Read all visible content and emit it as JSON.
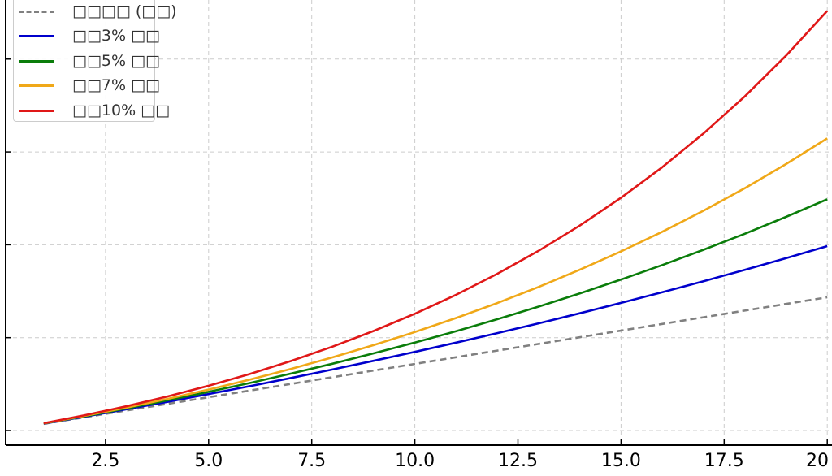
{
  "chart_data": {
    "type": "line",
    "title": "",
    "xlabel": "",
    "ylabel": "",
    "xlim": [
      0,
      20.1
    ],
    "ylim": [
      -3.2,
      64.3
    ],
    "xticks": [
      2.5,
      5.0,
      7.5,
      10.0,
      12.5,
      15.0,
      17.5,
      20.0
    ],
    "xtick_labels": [
      "2.5",
      "5.0",
      "7.5",
      "10.0",
      "12.5",
      "15.0",
      "17.5",
      "20"
    ],
    "ytick_step": 13.94,
    "grid": true,
    "legend_position": "top-left",
    "x": [
      1,
      2,
      3,
      4,
      5,
      6,
      7,
      8,
      9,
      10,
      11,
      12,
      13,
      14,
      15,
      16,
      17,
      18,
      19,
      20
    ],
    "series": [
      {
        "name": "□□□□ (□□)",
        "color": "#808080",
        "dashed": true,
        "values": [
          1,
          2,
          3,
          4,
          5,
          6,
          7,
          8,
          9,
          10,
          11,
          12,
          13,
          14,
          15,
          16,
          17,
          18,
          19,
          20
        ]
      },
      {
        "name": "□□3% □□",
        "color": "#0000cc",
        "dashed": false,
        "values": [
          1.03,
          2.09,
          3.18,
          4.31,
          5.47,
          6.66,
          7.89,
          9.16,
          10.46,
          11.81,
          13.19,
          14.62,
          16.09,
          17.6,
          19.16,
          20.76,
          22.41,
          24.12,
          25.87,
          27.68
        ]
      },
      {
        "name": "□□5% □□",
        "color": "#0a7d0a",
        "dashed": false,
        "values": [
          1.05,
          2.15,
          3.31,
          4.53,
          5.8,
          7.14,
          8.55,
          10.03,
          11.58,
          13.21,
          14.92,
          16.71,
          18.6,
          20.58,
          22.66,
          24.84,
          27.13,
          29.54,
          32.07,
          34.72
        ]
      },
      {
        "name": "□□7% □□",
        "color": "#f0a818",
        "dashed": false,
        "values": [
          1.07,
          2.21,
          3.44,
          4.75,
          6.15,
          7.65,
          9.26,
          10.98,
          12.82,
          14.78,
          16.89,
          19.14,
          21.55,
          24.13,
          26.89,
          29.84,
          33.0,
          36.38,
          40.0,
          43.87
        ]
      },
      {
        "name": "□□10% □□",
        "color": "#e01818",
        "dashed": false,
        "values": [
          1.1,
          2.31,
          3.64,
          5.11,
          6.72,
          8.49,
          10.44,
          12.58,
          14.94,
          17.53,
          20.38,
          23.52,
          26.97,
          30.77,
          34.95,
          39.54,
          44.6,
          50.16,
          56.27,
          63.0
        ]
      }
    ]
  }
}
